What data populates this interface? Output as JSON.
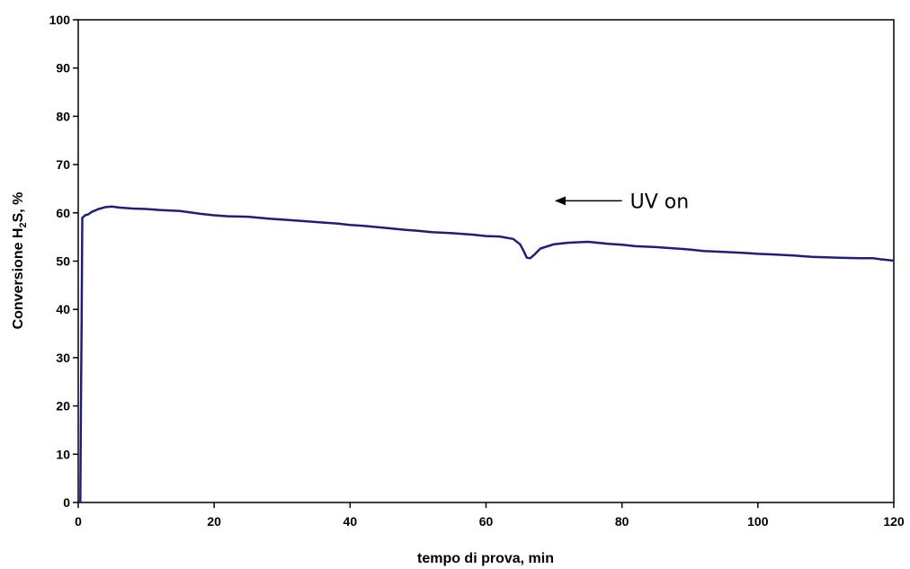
{
  "chart_data": {
    "type": "line",
    "title": "",
    "xlabel": "tempo di prova, min",
    "ylabel": {
      "pre": "Conversione H",
      "sub": "2",
      "post": "S, %"
    },
    "xlim": [
      0,
      120
    ],
    "ylim": [
      0,
      100
    ],
    "xticks": [
      0,
      20,
      40,
      60,
      80,
      100,
      120
    ],
    "yticks": [
      0,
      10,
      20,
      30,
      40,
      50,
      60,
      70,
      80,
      90,
      100
    ],
    "grid": false,
    "legend": "none",
    "annotation": {
      "text": "UV on",
      "arrow_tail": [
        80,
        62.5
      ],
      "arrow_head": [
        70,
        62.5
      ]
    },
    "series": [
      {
        "color": "#1f1f7a",
        "x": [
          0.3,
          0.4,
          0.5,
          0.6,
          0.8,
          1,
          1.5,
          2,
          3,
          4,
          5,
          6,
          8,
          10,
          12,
          15,
          18,
          20,
          22,
          25,
          28,
          30,
          33,
          35,
          38,
          40,
          42,
          45,
          48,
          50,
          52,
          55,
          58,
          60,
          62,
          64,
          65,
          65.5,
          66,
          66.5,
          67,
          68,
          70,
          72,
          75,
          78,
          80,
          82,
          85,
          88,
          90,
          92,
          95,
          98,
          100,
          102,
          105,
          108,
          110,
          112,
          115,
          117,
          118,
          120
        ],
        "y": [
          0,
          20,
          38,
          59,
          59.2,
          59.5,
          59.7,
          60.2,
          60.8,
          61.2,
          61.3,
          61.1,
          60.9,
          60.8,
          60.6,
          60.4,
          59.8,
          59.5,
          59.3,
          59.2,
          58.8,
          58.6,
          58.3,
          58.1,
          57.8,
          57.5,
          57.3,
          56.9,
          56.5,
          56.3,
          56,
          55.8,
          55.5,
          55.2,
          55.1,
          54.6,
          53.5,
          52.2,
          50.7,
          50.6,
          51.2,
          52.6,
          53.5,
          53.8,
          54,
          53.6,
          53.4,
          53.1,
          52.9,
          52.6,
          52.4,
          52.1,
          51.9,
          51.7,
          51.5,
          51.4,
          51.2,
          50.9,
          50.8,
          50.7,
          50.6,
          50.6,
          50.4,
          50.1
        ]
      }
    ]
  }
}
